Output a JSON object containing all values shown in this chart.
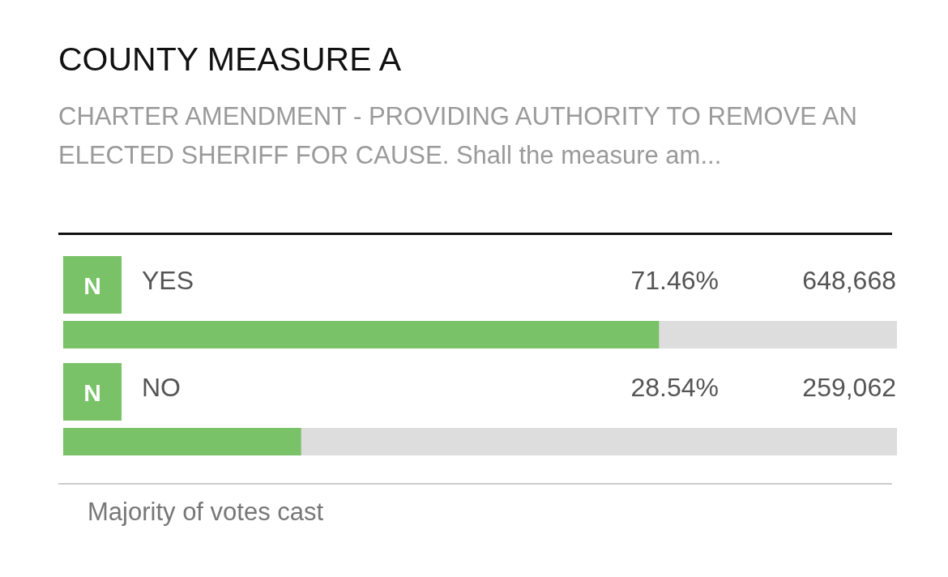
{
  "chart_data": {
    "type": "bar",
    "orientation": "horizontal",
    "title": "COUNTY MEASURE A",
    "subtitle": "CHARTER AMENDMENT - PROVIDING AUTHORITY TO REMOVE AN ELECTED SHERIFF FOR CAUSE. Shall the measure am...",
    "categories": [
      "YES",
      "NO"
    ],
    "values": [
      71.46,
      28.54
    ],
    "color": "#79c267",
    "xlim": [
      0,
      100
    ],
    "tick_labels": false,
    "value_labels": [
      "71.46%",
      "28.54%"
    ],
    "annotations": [
      "N",
      "648,668",
      "N",
      "259,062",
      "Majority of votes cast"
    ]
  }
}
